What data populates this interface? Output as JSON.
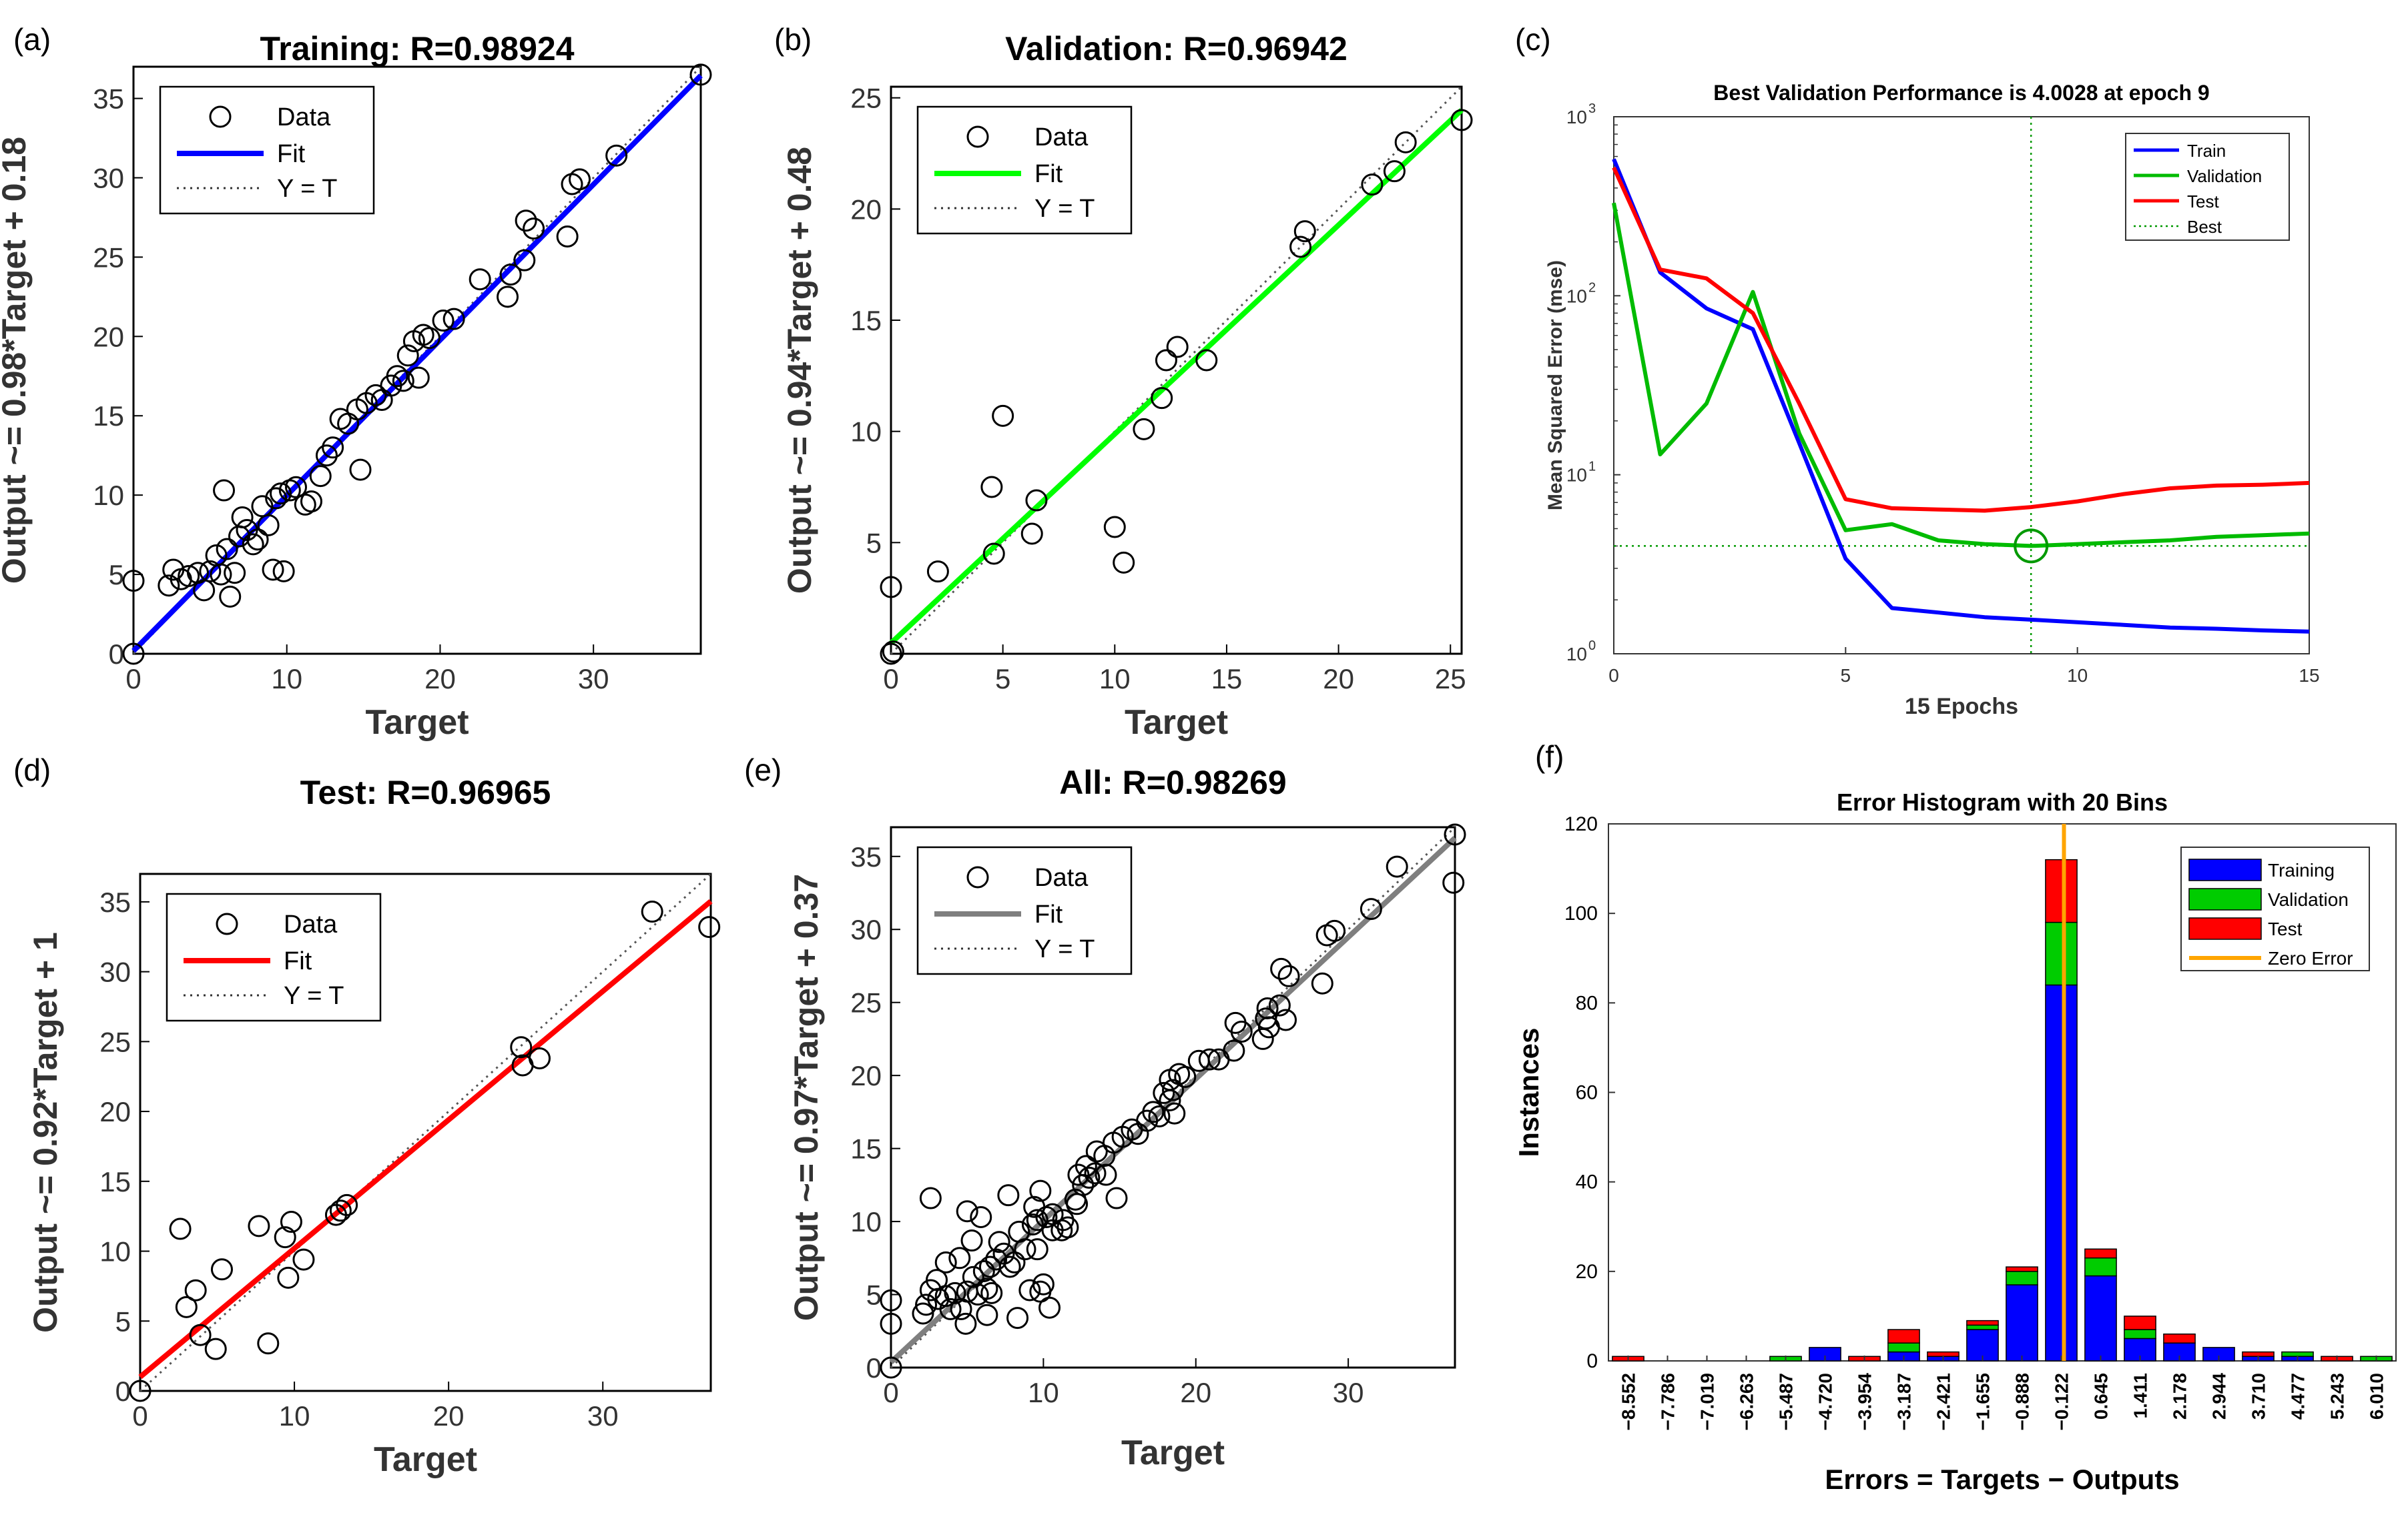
{
  "figure": {
    "colors": {
      "training_fit": "#0000ff",
      "validation_fit": "#00ff00",
      "test_fit": "#ff0000",
      "all_fit": "#7f7f7f",
      "train_curve": "#0000ff",
      "validation_curve": "#00bb00",
      "test_curve": "#ff0000",
      "best_line": "#009900",
      "hist_training": "#0000ff",
      "hist_validation": "#00cc00",
      "hist_test": "#ff0000",
      "zero_error": "#ffa500"
    }
  },
  "chart_data": [
    {
      "panel": "(a)",
      "type": "scatter",
      "title": "Training: R=0.98924",
      "xlabel": "Target",
      "ylabel": "Output ~= 0.98*Target + 0.18",
      "xlim": [
        0,
        37
      ],
      "ylim": [
        0,
        37
      ],
      "xticks": [
        0,
        10,
        20,
        30
      ],
      "yticks": [
        0,
        5,
        10,
        15,
        20,
        25,
        30,
        35
      ],
      "legend": [
        "Data",
        "Fit",
        "Y = T"
      ],
      "fit": {
        "slope": 0.98,
        "intercept": 0.18
      },
      "points": [
        [
          0,
          0
        ],
        [
          0,
          4.6
        ],
        [
          2.3,
          4.3
        ],
        [
          2.6,
          5.3
        ],
        [
          3.1,
          4.7
        ],
        [
          3.6,
          4.9
        ],
        [
          4.2,
          5.1
        ],
        [
          4.6,
          4
        ],
        [
          5,
          5.2
        ],
        [
          5.4,
          6.2
        ],
        [
          5.7,
          5
        ],
        [
          5.9,
          10.3
        ],
        [
          6.1,
          6.6
        ],
        [
          6.3,
          3.6
        ],
        [
          6.6,
          5.1
        ],
        [
          6.9,
          7.4
        ],
        [
          7.1,
          8.6
        ],
        [
          7.4,
          7.8
        ],
        [
          7.8,
          6.9
        ],
        [
          8.1,
          7.2
        ],
        [
          8.4,
          9.3
        ],
        [
          8.8,
          8.1
        ],
        [
          9.1,
          5.3
        ],
        [
          9.3,
          9.8
        ],
        [
          9.6,
          10.1
        ],
        [
          9.8,
          5.2
        ],
        [
          10.2,
          10.3
        ],
        [
          10.6,
          10.5
        ],
        [
          11.2,
          9.4
        ],
        [
          11.6,
          9.6
        ],
        [
          12.2,
          11.2
        ],
        [
          12.6,
          12.5
        ],
        [
          13,
          13
        ],
        [
          13.5,
          14.8
        ],
        [
          14,
          14.5
        ],
        [
          14.6,
          15.4
        ],
        [
          14.8,
          11.6
        ],
        [
          15.2,
          15.8
        ],
        [
          15.8,
          16.3
        ],
        [
          16.2,
          16
        ],
        [
          16.8,
          16.9
        ],
        [
          17.2,
          17.5
        ],
        [
          17.6,
          17.2
        ],
        [
          17.9,
          18.8
        ],
        [
          18.3,
          19.7
        ],
        [
          18.6,
          17.4
        ],
        [
          18.9,
          20.1
        ],
        [
          19.3,
          19.9
        ],
        [
          20.2,
          21
        ],
        [
          20.9,
          21.1
        ],
        [
          22.6,
          23.6
        ],
        [
          24.4,
          22.5
        ],
        [
          24.6,
          23.9
        ],
        [
          25.5,
          24.8
        ],
        [
          25.6,
          27.3
        ],
        [
          26.1,
          26.8
        ],
        [
          28.3,
          26.3
        ],
        [
          28.6,
          29.6
        ],
        [
          29.1,
          29.9
        ],
        [
          31.5,
          31.4
        ],
        [
          37,
          36.5
        ]
      ]
    },
    {
      "panel": "(b)",
      "type": "scatter",
      "title": "Validation: R=0.96942",
      "xlabel": "Target",
      "ylabel": "Output ~= 0.94*Target + 0.48",
      "xlim": [
        0,
        25.5
      ],
      "ylim": [
        0,
        25.5
      ],
      "xticks": [
        0,
        5,
        10,
        15,
        20,
        25
      ],
      "yticks": [
        5,
        10,
        15,
        20,
        25
      ],
      "legend": [
        "Data",
        "Fit",
        "Y = T"
      ],
      "fit": {
        "slope": 0.94,
        "intercept": 0.48
      },
      "points": [
        [
          0,
          0
        ],
        [
          0.1,
          0.1
        ],
        [
          0,
          3
        ],
        [
          2.1,
          3.7
        ],
        [
          4.5,
          7.5
        ],
        [
          4.6,
          4.5
        ],
        [
          5,
          10.7
        ],
        [
          6.3,
          5.4
        ],
        [
          6.5,
          6.9
        ],
        [
          10,
          5.7
        ],
        [
          10.4,
          4.1
        ],
        [
          11.3,
          10.1
        ],
        [
          12.1,
          11.5
        ],
        [
          12.3,
          13.2
        ],
        [
          12.8,
          13.8
        ],
        [
          14.1,
          13.2
        ],
        [
          18.3,
          18.3
        ],
        [
          18.5,
          19
        ],
        [
          21.5,
          21.1
        ],
        [
          22.5,
          21.7
        ],
        [
          23,
          23
        ],
        [
          25.5,
          24
        ]
      ]
    },
    {
      "panel": "(c)",
      "type": "line",
      "title": "Best Validation Performance is 4.0028 at epoch 9",
      "xlabel": "15 Epochs",
      "ylabel": "Mean Squared Error  (mse)",
      "xlim": [
        0,
        15
      ],
      "ylim": [
        1,
        1000
      ],
      "yscale": "log",
      "xticks": [
        0,
        5,
        10,
        15
      ],
      "yticks": [
        {
          "value": 1,
          "base": "10",
          "exp": "0"
        },
        {
          "value": 10,
          "base": "10",
          "exp": "1"
        },
        {
          "value": 100,
          "base": "10",
          "exp": "2"
        },
        {
          "value": 1000,
          "base": "10",
          "exp": "3"
        }
      ],
      "legend": [
        "Train",
        "Validation",
        "Test",
        "Best"
      ],
      "best": {
        "epoch": 9,
        "value": 4.0028
      },
      "x": [
        0,
        1,
        2,
        3,
        4,
        5,
        6,
        7,
        8,
        9,
        10,
        11,
        12,
        13,
        14,
        15
      ],
      "series": [
        {
          "name": "Train",
          "values": [
            580,
            135,
            85,
            65,
            15,
            3.4,
            1.8,
            1.7,
            1.6,
            1.55,
            1.5,
            1.45,
            1.4,
            1.38,
            1.35,
            1.33
          ]
        },
        {
          "name": "Validation",
          "values": [
            330,
            13,
            25,
            105,
            17,
            4.9,
            5.3,
            4.3,
            4.1,
            4.0028,
            4.1,
            4.2,
            4.3,
            4.5,
            4.6,
            4.7
          ]
        },
        {
          "name": "Test",
          "values": [
            520,
            140,
            125,
            80,
            25,
            7.3,
            6.5,
            6.4,
            6.3,
            6.6,
            7.1,
            7.8,
            8.4,
            8.7,
            8.8,
            9.0
          ]
        }
      ]
    },
    {
      "panel": "(d)",
      "type": "scatter",
      "title": "Test: R=0.96965",
      "xlabel": "Target",
      "ylabel": "Output ~= 0.92*Target + 1",
      "xlim": [
        0,
        37
      ],
      "ylim": [
        0,
        37
      ],
      "xticks": [
        0,
        10,
        20,
        30
      ],
      "yticks": [
        0,
        5,
        10,
        15,
        20,
        25,
        30,
        35
      ],
      "legend": [
        "Data",
        "Fit",
        "Y = T"
      ],
      "fit": {
        "slope": 0.92,
        "intercept": 1
      },
      "points": [
        [
          0,
          0
        ],
        [
          2.6,
          11.6
        ],
        [
          3,
          6
        ],
        [
          3.6,
          7.2
        ],
        [
          3.9,
          4
        ],
        [
          4.9,
          3
        ],
        [
          5.3,
          8.7
        ],
        [
          7.7,
          11.8
        ],
        [
          8.3,
          3.4
        ],
        [
          9.4,
          11
        ],
        [
          9.6,
          8.1
        ],
        [
          9.8,
          12.1
        ],
        [
          10.6,
          9.4
        ],
        [
          12.7,
          12.6
        ],
        [
          13,
          12.9
        ],
        [
          13.4,
          13.3
        ],
        [
          24.7,
          24.6
        ],
        [
          24.8,
          23.3
        ],
        [
          25.9,
          23.8
        ],
        [
          33.2,
          34.3
        ],
        [
          36.9,
          33.2
        ]
      ]
    },
    {
      "panel": "(e)",
      "type": "scatter",
      "title": "All: R=0.98269",
      "xlabel": "Target",
      "ylabel": "Output ~= 0.97*Target + 0.37",
      "xlim": [
        0,
        37
      ],
      "ylim": [
        0,
        37
      ],
      "xticks": [
        0,
        10,
        20,
        30
      ],
      "yticks": [
        0,
        5,
        10,
        15,
        20,
        25,
        30,
        35
      ],
      "legend": [
        "Data",
        "Fit",
        "Y = T"
      ],
      "fit": {
        "slope": 0.97,
        "intercept": 0.37
      },
      "points": [
        [
          0,
          0
        ],
        [
          0,
          4.6
        ],
        [
          0,
          3
        ],
        [
          2.1,
          3.7
        ],
        [
          2.3,
          4.3
        ],
        [
          2.6,
          11.6
        ],
        [
          2.6,
          5.3
        ],
        [
          3,
          6
        ],
        [
          3.1,
          4.7
        ],
        [
          3.6,
          7.2
        ],
        [
          3.6,
          4.9
        ],
        [
          3.9,
          4
        ],
        [
          4.2,
          5.1
        ],
        [
          4.5,
          7.5
        ],
        [
          4.6,
          4
        ],
        [
          4.9,
          3
        ],
        [
          5,
          5.2
        ],
        [
          5,
          10.7
        ],
        [
          5.3,
          8.7
        ],
        [
          5.4,
          6.2
        ],
        [
          5.7,
          5
        ],
        [
          5.9,
          10.3
        ],
        [
          6.1,
          6.6
        ],
        [
          6.3,
          3.6
        ],
        [
          6.3,
          5.4
        ],
        [
          6.5,
          6.9
        ],
        [
          6.6,
          5.1
        ],
        [
          6.9,
          7.4
        ],
        [
          7.1,
          8.6
        ],
        [
          7.4,
          7.8
        ],
        [
          7.7,
          11.8
        ],
        [
          7.8,
          6.9
        ],
        [
          8.1,
          7.2
        ],
        [
          8.3,
          3.4
        ],
        [
          8.4,
          9.3
        ],
        [
          8.8,
          8.1
        ],
        [
          9.1,
          5.3
        ],
        [
          9.3,
          9.8
        ],
        [
          9.4,
          11
        ],
        [
          9.6,
          8.1
        ],
        [
          9.6,
          10.1
        ],
        [
          9.8,
          12.1
        ],
        [
          9.8,
          5.2
        ],
        [
          10,
          5.7
        ],
        [
          10.2,
          10.3
        ],
        [
          10.4,
          4.1
        ],
        [
          10.6,
          9.4
        ],
        [
          10.6,
          10.5
        ],
        [
          11.2,
          9.4
        ],
        [
          11.3,
          10.1
        ],
        [
          11.6,
          9.6
        ],
        [
          12.1,
          11.5
        ],
        [
          12.2,
          11.2
        ],
        [
          12.3,
          13.2
        ],
        [
          12.6,
          12.5
        ],
        [
          12.8,
          13.8
        ],
        [
          13,
          13
        ],
        [
          13.4,
          13.3
        ],
        [
          13.5,
          14.8
        ],
        [
          14,
          14.5
        ],
        [
          14.1,
          13.2
        ],
        [
          14.6,
          15.4
        ],
        [
          14.8,
          11.6
        ],
        [
          15.2,
          15.8
        ],
        [
          15.8,
          16.3
        ],
        [
          16.2,
          16
        ],
        [
          16.8,
          16.9
        ],
        [
          17.2,
          17.5
        ],
        [
          17.6,
          17.2
        ],
        [
          17.9,
          18.8
        ],
        [
          18.3,
          18.3
        ],
        [
          18.3,
          19.7
        ],
        [
          18.5,
          19
        ],
        [
          18.6,
          17.4
        ],
        [
          18.9,
          20.1
        ],
        [
          19.3,
          19.9
        ],
        [
          20.2,
          21
        ],
        [
          20.9,
          21.1
        ],
        [
          21.5,
          21.1
        ],
        [
          22.5,
          21.7
        ],
        [
          22.6,
          23.6
        ],
        [
          23,
          23
        ],
        [
          24.4,
          22.5
        ],
        [
          24.6,
          23.9
        ],
        [
          24.7,
          24.6
        ],
        [
          24.8,
          23.3
        ],
        [
          25.5,
          24.8
        ],
        [
          25.6,
          27.3
        ],
        [
          25.9,
          23.8
        ],
        [
          26.1,
          26.8
        ],
        [
          28.3,
          26.3
        ],
        [
          28.6,
          29.6
        ],
        [
          29.1,
          29.9
        ],
        [
          31.5,
          31.4
        ],
        [
          33.2,
          34.3
        ],
        [
          36.9,
          33.2
        ],
        [
          37,
          36.5
        ]
      ]
    },
    {
      "panel": "(f)",
      "type": "bar",
      "stacked": true,
      "title": "Error Histogram with 20 Bins",
      "xlabel": "Errors = Targets − Outputs",
      "ylabel": "Instances",
      "ylim": [
        0,
        120
      ],
      "yticks": [
        0,
        20,
        40,
        60,
        80,
        100,
        120
      ],
      "legend": [
        "Training",
        "Validation",
        "Test",
        "Zero Error"
      ],
      "zero_error_bin": 11,
      "categories": [
        "−8.552",
        "−7.786",
        "−7.019",
        "−6.263",
        "−5.487",
        "−4.720",
        "−3.954",
        "−3.187",
        "−2.421",
        "−1.655",
        "−0.888",
        "−0.122",
        "0.645",
        "1.411",
        "2.178",
        "2.944",
        "3.710",
        "4.477",
        "5.243",
        "6.010"
      ],
      "series": [
        {
          "name": "Training",
          "values": [
            0,
            0,
            0,
            0,
            0,
            3,
            0,
            2,
            1,
            7,
            17,
            84,
            19,
            5,
            4,
            3,
            1,
            1,
            0,
            0
          ]
        },
        {
          "name": "Validation",
          "values": [
            0,
            0,
            0,
            0,
            1,
            0,
            0,
            2,
            0,
            1,
            3,
            14,
            4,
            2,
            0,
            0,
            0,
            1,
            0,
            1
          ]
        },
        {
          "name": "Test",
          "values": [
            1,
            0,
            0,
            0,
            0,
            0,
            1,
            3,
            1,
            1,
            1,
            14,
            2,
            3,
            2,
            0,
            1,
            0,
            1,
            0
          ]
        }
      ]
    }
  ]
}
